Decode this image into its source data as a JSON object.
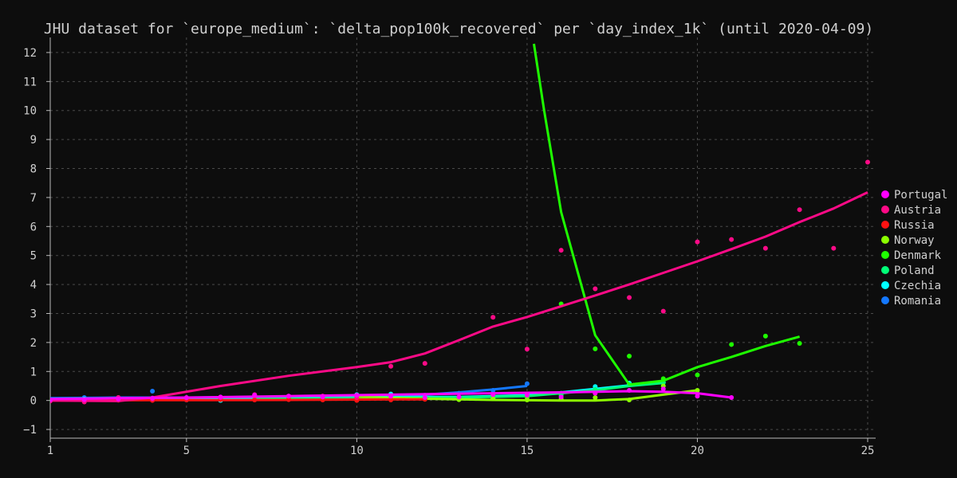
{
  "chart_data": {
    "type": "scatter",
    "title": "JHU dataset for `europe_medium`: `delta_pop100k_recovered` per `day_index_1k` (until 2020-04-09)",
    "xlabel": "",
    "ylabel": "",
    "xlim": [
      1,
      25
    ],
    "ylim": [
      -1.3,
      12.3
    ],
    "x_ticks": [
      1,
      5,
      10,
      15,
      20,
      25
    ],
    "y_ticks": [
      -1,
      0,
      1,
      2,
      3,
      4,
      5,
      6,
      7,
      8,
      9,
      10,
      11,
      12
    ],
    "grid": true,
    "legend_position": "right",
    "series": [
      {
        "name": "Portugal",
        "color": "#ff00ff",
        "points": [
          [
            1,
            0.02
          ],
          [
            2,
            0.03
          ],
          [
            3,
            0.05
          ],
          [
            4,
            0.08
          ],
          [
            5,
            0.1
          ],
          [
            6,
            0.12
          ],
          [
            7,
            0.18
          ],
          [
            8,
            0.15
          ],
          [
            9,
            0.12
          ],
          [
            10,
            0.18
          ],
          [
            11,
            0.15
          ],
          [
            12,
            0.1
          ],
          [
            13,
            0.12
          ],
          [
            14,
            0.2
          ],
          [
            15,
            0.18
          ],
          [
            16,
            0.12
          ],
          [
            17,
            0.25
          ],
          [
            18,
            0.35
          ],
          [
            19,
            0.4
          ],
          [
            20,
            0.15
          ],
          [
            21,
            0.1
          ]
        ],
        "trend": [
          [
            1,
            0.05
          ],
          [
            3,
            0.08
          ],
          [
            5,
            0.1
          ],
          [
            8,
            0.15
          ],
          [
            11,
            0.2
          ],
          [
            14,
            0.25
          ],
          [
            16,
            0.28
          ],
          [
            18,
            0.32
          ],
          [
            19,
            0.3
          ],
          [
            20,
            0.25
          ],
          [
            21,
            0.1
          ]
        ]
      },
      {
        "name": "Austria",
        "color": "#ff0a87",
        "points": [
          [
            1,
            -0.02
          ],
          [
            2,
            -0.05
          ],
          [
            3,
            0.1
          ],
          [
            4,
            0.05
          ],
          [
            5,
            0.08
          ],
          [
            6,
            0.1
          ],
          [
            7,
            0.2
          ],
          [
            8,
            0.15
          ],
          [
            9,
            0.15
          ],
          [
            10,
            0.1
          ],
          [
            11,
            1.18
          ],
          [
            12,
            1.28
          ],
          [
            14,
            2.87
          ],
          [
            15,
            1.77
          ],
          [
            16,
            5.18
          ],
          [
            17,
            3.85
          ],
          [
            18,
            3.55
          ],
          [
            19,
            3.08
          ],
          [
            20,
            5.47
          ],
          [
            21,
            5.55
          ],
          [
            22,
            5.25
          ],
          [
            23,
            6.58
          ],
          [
            24,
            5.25
          ],
          [
            25,
            8.22
          ]
        ],
        "trend": [
          [
            1,
            0.0
          ],
          [
            3,
            -0.02
          ],
          [
            4,
            0.1
          ],
          [
            6,
            0.5
          ],
          [
            8,
            0.85
          ],
          [
            10,
            1.15
          ],
          [
            11,
            1.32
          ],
          [
            12,
            1.62
          ],
          [
            13,
            2.08
          ],
          [
            14,
            2.55
          ],
          [
            15,
            2.88
          ],
          [
            16,
            3.25
          ],
          [
            17,
            3.62
          ],
          [
            18,
            4.0
          ],
          [
            19,
            4.4
          ],
          [
            20,
            4.8
          ],
          [
            21,
            5.22
          ],
          [
            22,
            5.65
          ],
          [
            23,
            6.15
          ],
          [
            24,
            6.62
          ],
          [
            25,
            7.18
          ]
        ]
      },
      {
        "name": "Russia",
        "color": "#ff1212",
        "points": [
          [
            1,
            0.0
          ],
          [
            2,
            0.0
          ],
          [
            3,
            0.01
          ],
          [
            4,
            0.0
          ],
          [
            5,
            0.02
          ],
          [
            6,
            0.03
          ],
          [
            7,
            0.02
          ],
          [
            8,
            0.03
          ],
          [
            9,
            0.02
          ],
          [
            10,
            0.0
          ],
          [
            11,
            0.02
          ],
          [
            12,
            0.04
          ]
        ],
        "trend": [
          [
            1,
            0.0
          ],
          [
            4,
            0.01
          ],
          [
            8,
            0.02
          ],
          [
            12,
            0.04
          ]
        ]
      },
      {
        "name": "Norway",
        "color": "#8cff00",
        "points": [
          [
            10,
            0.15
          ],
          [
            11,
            0.07
          ],
          [
            12,
            0.05
          ],
          [
            13,
            0.03
          ],
          [
            14,
            0.06
          ],
          [
            15,
            0.02
          ],
          [
            16,
            0.05
          ],
          [
            17,
            0.1
          ],
          [
            18,
            0.02
          ],
          [
            19,
            0.5
          ],
          [
            20,
            0.35
          ]
        ],
        "trend": [
          [
            10,
            0.12
          ],
          [
            12,
            0.06
          ],
          [
            14,
            0.02
          ],
          [
            16,
            0.0
          ],
          [
            17,
            0.0
          ],
          [
            18,
            0.05
          ],
          [
            19,
            0.2
          ],
          [
            20,
            0.35
          ]
        ]
      },
      {
        "name": "Denmark",
        "color": "#1eff00",
        "points": [
          [
            8,
            0.05
          ],
          [
            9,
            0.03
          ],
          [
            10,
            0.1
          ],
          [
            11,
            0.08
          ],
          [
            12,
            0.05
          ],
          [
            13,
            0.07
          ],
          [
            14,
            0.06
          ],
          [
            15,
            0.1
          ],
          [
            16,
            3.33
          ],
          [
            17,
            1.78
          ],
          [
            18,
            1.53
          ],
          [
            19,
            0.75
          ],
          [
            20,
            0.88
          ],
          [
            21,
            1.93
          ],
          [
            22,
            2.22
          ],
          [
            23,
            1.97
          ]
        ],
        "trend": [
          [
            15.2,
            12.3
          ],
          [
            15.5,
            10.0
          ],
          [
            16,
            6.5
          ],
          [
            17,
            2.25
          ],
          [
            18,
            0.55
          ],
          [
            19,
            0.68
          ],
          [
            20,
            1.15
          ],
          [
            21,
            1.5
          ],
          [
            22,
            1.88
          ],
          [
            23,
            2.2
          ]
        ]
      },
      {
        "name": "Poland",
        "color": "#00ff78",
        "points": [
          [
            7,
            0.05
          ],
          [
            8,
            0.05
          ],
          [
            9,
            0.06
          ],
          [
            10,
            0.08
          ],
          [
            11,
            0.12
          ],
          [
            12,
            0.08
          ],
          [
            13,
            0.1
          ],
          [
            14,
            0.09
          ],
          [
            15,
            0.12
          ],
          [
            16,
            0.18
          ],
          [
            17,
            0.38
          ],
          [
            18,
            0.55
          ],
          [
            19,
            0.62
          ]
        ],
        "trend": [
          [
            7,
            0.05
          ],
          [
            10,
            0.08
          ],
          [
            13,
            0.1
          ],
          [
            15,
            0.15
          ],
          [
            17,
            0.35
          ],
          [
            18,
            0.5
          ],
          [
            19,
            0.6
          ]
        ]
      },
      {
        "name": "Czechia",
        "color": "#00ffff",
        "points": [
          [
            1,
            0.02
          ],
          [
            2,
            0.05
          ],
          [
            3,
            0.05
          ],
          [
            4,
            0.06
          ],
          [
            5,
            0.05
          ],
          [
            6,
            0.0
          ],
          [
            7,
            0.1
          ],
          [
            8,
            0.1
          ],
          [
            9,
            0.12
          ],
          [
            10,
            0.2
          ],
          [
            11,
            0.22
          ],
          [
            12,
            0.12
          ],
          [
            13,
            0.1
          ],
          [
            14,
            0.08
          ],
          [
            15,
            0.2
          ],
          [
            16,
            0.25
          ],
          [
            17,
            0.48
          ],
          [
            18,
            0.6
          ],
          [
            19,
            0.62
          ]
        ],
        "trend": [
          [
            1,
            0.05
          ],
          [
            4,
            0.05
          ],
          [
            7,
            0.08
          ],
          [
            10,
            0.12
          ],
          [
            13,
            0.12
          ],
          [
            15,
            0.18
          ],
          [
            16,
            0.28
          ],
          [
            17,
            0.4
          ],
          [
            18,
            0.52
          ],
          [
            19,
            0.65
          ]
        ]
      },
      {
        "name": "Romania",
        "color": "#1478ff",
        "points": [
          [
            1,
            0.03
          ],
          [
            2,
            0.1
          ],
          [
            3,
            0.1
          ],
          [
            4,
            0.32
          ],
          [
            5,
            0.02
          ],
          [
            6,
            0.05
          ],
          [
            7,
            0.15
          ],
          [
            8,
            0.12
          ],
          [
            9,
            0.15
          ],
          [
            10,
            0.12
          ],
          [
            11,
            0.15
          ],
          [
            12,
            0.18
          ],
          [
            13,
            0.25
          ],
          [
            14,
            0.35
          ],
          [
            15,
            0.58
          ]
        ],
        "trend": [
          [
            1,
            0.08
          ],
          [
            3,
            0.1
          ],
          [
            5,
            0.1
          ],
          [
            7,
            0.12
          ],
          [
            10,
            0.15
          ],
          [
            12,
            0.2
          ],
          [
            13,
            0.28
          ],
          [
            14,
            0.38
          ],
          [
            15,
            0.5
          ]
        ]
      }
    ]
  }
}
